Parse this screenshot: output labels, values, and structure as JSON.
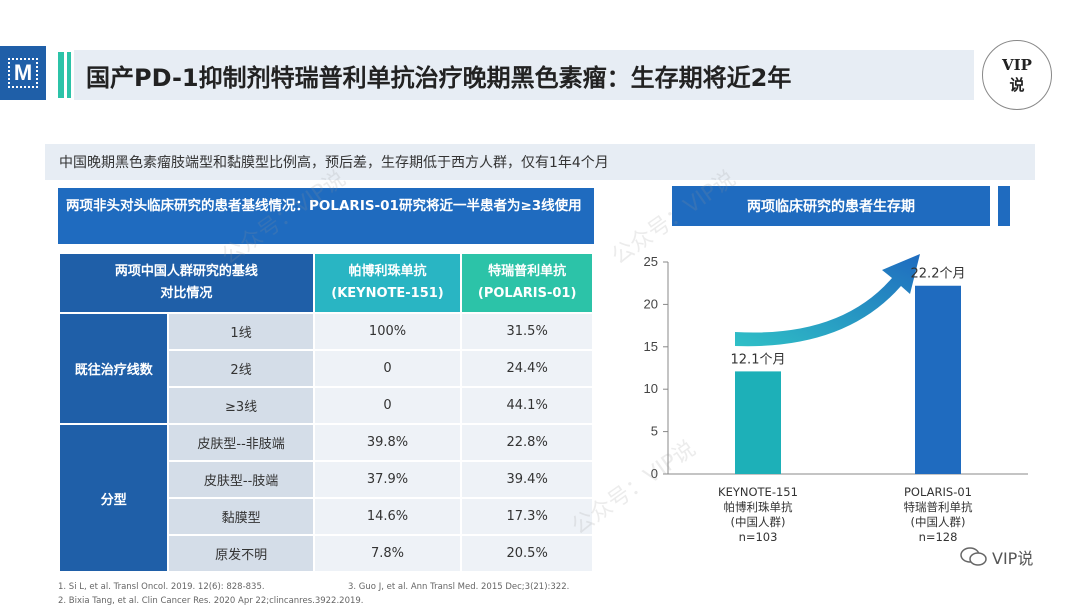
{
  "header": {
    "logo_letter": "M",
    "title": "国产PD-1抑制剂特瑞普利单抗治疗晚期黑色素瘤：生存期将近2年",
    "badge_line1": "VIP",
    "badge_line2": "说"
  },
  "subtitle": "中国晚期黑色素瘤肢端型和黏膜型比例高，预后差，生存期低于西方人群，仅有1年4个月",
  "left": {
    "heading": "两项非头对头临床研究的患者基线情况：POLARIS-01研究将近一半患者为≥3线使用",
    "table": {
      "col1_line1": "两项中国人群研究的基线",
      "col1_line2": "对比情况",
      "col2_line1": "帕博利珠单抗",
      "col2_line2": "(KEYNOTE-151)",
      "col3_line1": "特瑞普利单抗",
      "col3_line2": "(POLARIS-01)",
      "groups": [
        {
          "name": "既往治疗线数",
          "rows": [
            {
              "label": "1线",
              "a": "100%",
              "b": "31.5%"
            },
            {
              "label": "2线",
              "a": "0",
              "b": "24.4%"
            },
            {
              "label": "≥3线",
              "a": "0",
              "b": "44.1%"
            }
          ]
        },
        {
          "name": "分型",
          "rows": [
            {
              "label": "皮肤型--非肢端",
              "a": "39.8%",
              "b": "22.8%"
            },
            {
              "label": "皮肤型--肢端",
              "a": "37.9%",
              "b": "39.4%"
            },
            {
              "label": "黏膜型",
              "a": "14.6%",
              "b": "17.3%"
            },
            {
              "label": "原发不明",
              "a": "7.8%",
              "b": "20.5%"
            }
          ]
        }
      ]
    }
  },
  "footnotes": {
    "f1": "1.   Si L, et al. Transl Oncol. 2019. 12(6): 828-835.",
    "f2": "2.   Bixia Tang, et al. Clin Cancer Res. 2020 Apr 22;clincanres.3922.2019.",
    "f3": "3.   Guo J, et al. Ann Transl Med. 2015 Dec;3(21):322."
  },
  "chart_data": {
    "type": "bar",
    "title": "两项临床研究的患者生存期",
    "categories": [
      [
        "KEYNOTE-151",
        "帕博利珠单抗",
        "(中国人群)",
        "n=103"
      ],
      [
        "POLARIS-01",
        "特瑞普利单抗",
        "(中国人群)",
        "n=128"
      ]
    ],
    "values": [
      12.1,
      22.2
    ],
    "data_labels": [
      "12.1个月",
      "22.2个月"
    ],
    "colors": [
      "#1db0b8",
      "#1f6bbf"
    ],
    "ylim": [
      0,
      25
    ],
    "yticks": [
      0,
      5,
      10,
      15,
      20,
      25
    ],
    "grid": false,
    "legend": "none"
  },
  "watermark": "公众号：VIP说",
  "corner_brand": "VIP说"
}
